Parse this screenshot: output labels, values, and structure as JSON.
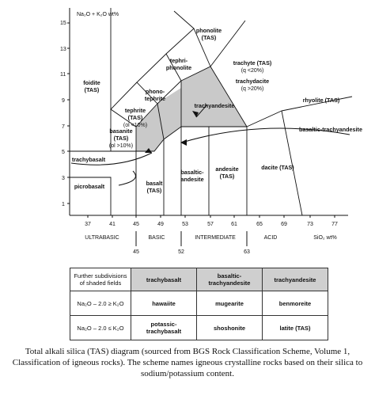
{
  "diagram": {
    "y_axis_label": "Na₂O + K₂O wt%",
    "y_ticks": [
      "1",
      "3",
      "5",
      "7",
      "9",
      "11",
      "13",
      "15"
    ],
    "x_ticks": [
      "37",
      "41",
      "45",
      "49",
      "53",
      "57",
      "61",
      "65",
      "69",
      "73",
      "77"
    ],
    "zones": {
      "ultrabasic": "ULTRABASIC",
      "basic": "BASIC",
      "intermediate": "INTERMEDIATE",
      "acid": "ACID",
      "sio2": "SiO₂ wt%"
    },
    "boundary_values": [
      "45",
      "52",
      "63"
    ],
    "fields": {
      "foidite_1": "foidite",
      "foidite_2": "(TAS)",
      "phonolite_1": "phonolite",
      "phonolite_2": "(TAS)",
      "tephriphonolite_1": "tephri-",
      "tephriphonolite_2": "phonolite",
      "phonotephrite_1": "phono-",
      "phonotephrite_2": "tephrite",
      "trachyte_1": "trachyte (TAS)",
      "trachyte_2": "(q <20%)",
      "trachydacite_1": "trachydacite",
      "trachydacite_2": "(q >20%)",
      "trachyandesite": "trachyandesite",
      "rhyolite": "rhyolite (TAS)",
      "basaltic_trachyandesite": "basaltic-trachyandesite",
      "tephrite_1": "tephrite",
      "tephrite_2": "(TAS)",
      "tephrite_3": "(ol <10%)",
      "basanite_1": "basanite",
      "basanite_2": "(TAS)",
      "basanite_3": "(ol >10%)",
      "trachybasalt": "trachybasalt",
      "picrobasalt": "picrobasalt",
      "basalt_1": "basalt",
      "basalt_2": "(TAS)",
      "basaltic_andesite_1": "basaltic-",
      "basaltic_andesite_2": "andesite",
      "andesite_1": "andesite",
      "andesite_2": "(TAS)",
      "dacite": "dacite (TAS)"
    }
  },
  "table": {
    "header": {
      "first": "Further subdivisions of shaded fields",
      "col1": "trachybasalt",
      "col2": "basaltic-trachyandesite",
      "col3": "trachyandesite"
    },
    "rows": [
      {
        "condition": "Na₂O – 2.0 ≥ K₂O",
        "col1": "hawaiite",
        "col2": "mugearite",
        "col3": "benmoreite"
      },
      {
        "condition": "Na₂O – 2.0 ≤ K₂O",
        "col1": "potassic-trachybasalt",
        "col2": "shoshonite",
        "col3": "latite (TAS)"
      }
    ]
  },
  "caption": "Total alkali silica (TAS) diagram (sourced from BGS Rock Classification Scheme, Volume 1, Classification of igneous rocks). The scheme names igneous crystalline rocks based on their silica to sodium/potassium content."
}
